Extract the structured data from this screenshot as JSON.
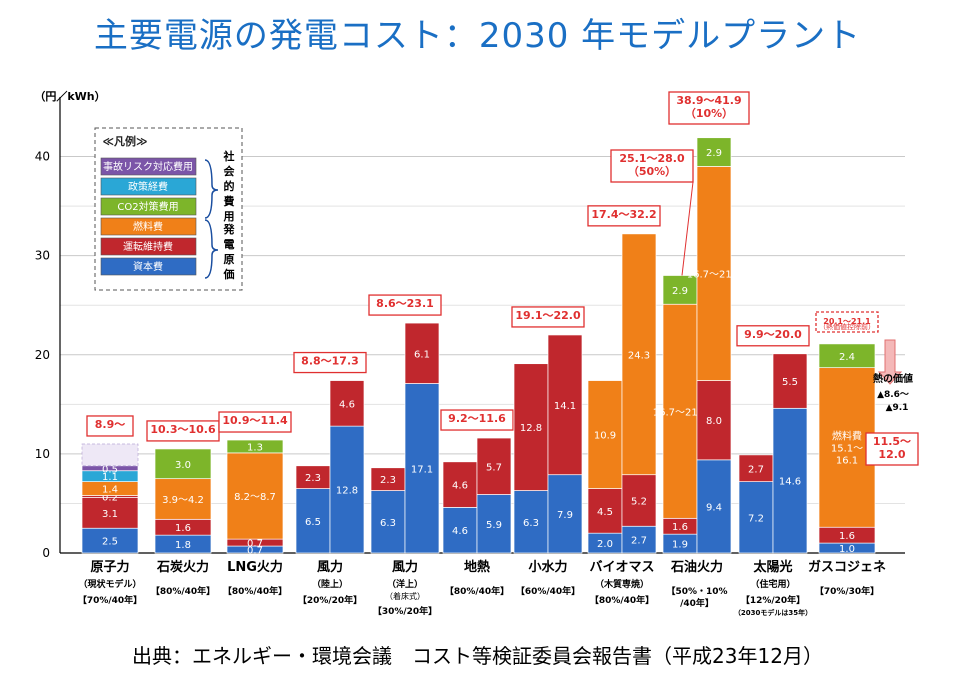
{
  "page": {
    "title": "主要電源の発電コスト：2030 年モデルプラント",
    "source": "出典：エネルギー・環境会議　コスト等検証委員会報告書（平成23年12月）"
  },
  "colors": {
    "capital": "#2f6cc4",
    "om": "#c0272d",
    "fuel": "#f08018",
    "co2": "#7db52a",
    "policy": "#2aa7d6",
    "accident": "#7b55a8",
    "box_border": "#e03030"
  },
  "chart_data": {
    "type": "bar",
    "stacked": true,
    "title": "主要電源の発電コスト：2030 年モデルプラント",
    "ylabel": "（円／kWh）",
    "ylim": [
      0,
      45
    ],
    "yticks": [
      0,
      10,
      20,
      30,
      40
    ],
    "grid": true,
    "legend": {
      "title": "≪凡例≫",
      "placement": "top-left",
      "items": [
        {
          "key": "accident",
          "label": "事故リスク対応費用"
        },
        {
          "key": "policy",
          "label": "政策経費"
        },
        {
          "key": "co2",
          "label": "CO2対策費用"
        },
        {
          "key": "fuel",
          "label": "燃料費"
        },
        {
          "key": "om",
          "label": "運転維持費"
        },
        {
          "key": "capital",
          "label": "資本費"
        }
      ],
      "group_social": "社会的費用",
      "group_gen": "発電原価"
    },
    "categories": [
      {
        "name": "原子力",
        "sub1": "（現状モデル）",
        "sub2": "【70%/40年】",
        "range_label": "8.9～",
        "bars": [
          {
            "segments": [
              {
                "key": "capital",
                "value": 2.5,
                "label": "2.5"
              },
              {
                "key": "om",
                "value": 3.1,
                "label": "3.1"
              },
              {
                "key": "om",
                "value": 0.2,
                "label": "0.2"
              },
              {
                "key": "fuel",
                "value": 1.4,
                "label": "1.4"
              },
              {
                "key": "policy",
                "value": 1.1,
                "label": "1.1"
              },
              {
                "key": "accident",
                "value": 0.5,
                "label": "0.5"
              },
              {
                "key": "accident_open",
                "value": 2.2,
                "label": ""
              }
            ]
          }
        ]
      },
      {
        "name": "石炭火力",
        "sub1": "",
        "sub2": "【80%/40年】",
        "range_label": "10.3～10.6",
        "bars": [
          {
            "segments": [
              {
                "key": "capital",
                "value": 1.8,
                "label": "1.8"
              },
              {
                "key": "om",
                "value": 1.6,
                "label": "1.6"
              },
              {
                "key": "fuel",
                "value": 4.1,
                "label": "3.9～4.2"
              },
              {
                "key": "co2",
                "value": 3.0,
                "label": "3.0"
              }
            ]
          }
        ]
      },
      {
        "name": "LNG火力",
        "sub1": "",
        "sub2": "【80%/40年】",
        "range_label": "10.9～11.4",
        "bars": [
          {
            "segments": [
              {
                "key": "capital",
                "value": 0.7,
                "label": "0.7"
              },
              {
                "key": "om",
                "value": 0.7,
                "label": "0.7"
              },
              {
                "key": "fuel",
                "value": 8.7,
                "label": "8.2～8.7"
              },
              {
                "key": "co2",
                "value": 1.3,
                "label": "1.3"
              }
            ]
          }
        ]
      },
      {
        "name": "風力",
        "sub1": "（陸上）",
        "sub2": "【20%/20年】",
        "range_label": "8.8～17.3",
        "bars": [
          {
            "segments": [
              {
                "key": "capital",
                "value": 6.5,
                "label": "6.5"
              },
              {
                "key": "om",
                "value": 2.3,
                "label": "2.3"
              }
            ]
          },
          {
            "segments": [
              {
                "key": "capital",
                "value": 12.8,
                "label": "12.8"
              },
              {
                "key": "om",
                "value": 4.6,
                "label": "4.6"
              }
            ]
          }
        ]
      },
      {
        "name": "風力",
        "sub1": "（洋上）",
        "sub1b": "（着床式）",
        "sub2": "【30%/20年】",
        "range_label": "8.6～23.1",
        "bars": [
          {
            "segments": [
              {
                "key": "capital",
                "value": 6.3,
                "label": "6.3"
              },
              {
                "key": "om",
                "value": 2.3,
                "label": "2.3"
              }
            ]
          },
          {
            "segments": [
              {
                "key": "capital",
                "value": 17.1,
                "label": "17.1"
              },
              {
                "key": "om",
                "value": 6.1,
                "label": "6.1"
              }
            ]
          }
        ]
      },
      {
        "name": "地熱",
        "sub1": "",
        "sub2": "【80%/40年】",
        "range_label": "9.2～11.6",
        "bars": [
          {
            "segments": [
              {
                "key": "capital",
                "value": 4.6,
                "label": "4.6"
              },
              {
                "key": "om",
                "value": 4.6,
                "label": "4.6"
              }
            ]
          },
          {
            "segments": [
              {
                "key": "capital",
                "value": 5.9,
                "label": "5.9"
              },
              {
                "key": "om",
                "value": 5.7,
                "label": "5.7"
              }
            ]
          }
        ]
      },
      {
        "name": "小水力",
        "sub1": "",
        "sub2": "【60%/40年】",
        "range_label": "19.1～22.0",
        "bars": [
          {
            "segments": [
              {
                "key": "capital",
                "value": 6.3,
                "label": "6.3"
              },
              {
                "key": "om",
                "value": 12.8,
                "label": "12.8"
              }
            ]
          },
          {
            "segments": [
              {
                "key": "capital",
                "value": 7.9,
                "label": "7.9"
              },
              {
                "key": "om",
                "value": 14.1,
                "label": "14.1"
              }
            ]
          }
        ]
      },
      {
        "name": "バイオマス",
        "sub1": "（木質専焼）",
        "sub2": "【80%/40年】",
        "range_label": "17.4～32.2",
        "bars": [
          {
            "segments": [
              {
                "key": "capital",
                "value": 2.0,
                "label": "2.0"
              },
              {
                "key": "om",
                "value": 4.5,
                "label": "4.5"
              },
              {
                "key": "fuel",
                "value": 10.9,
                "label": "10.9"
              }
            ]
          },
          {
            "segments": [
              {
                "key": "capital",
                "value": 2.7,
                "label": "2.7"
              },
              {
                "key": "om",
                "value": 5.2,
                "label": "5.2"
              },
              {
                "key": "fuel",
                "value": 24.3,
                "label": "24.3"
              }
            ]
          }
        ]
      },
      {
        "name": "石油火力",
        "sub1": "",
        "sub2": "【50%・10%",
        "sub2b": "/40年】",
        "range_label": "38.9～41.9",
        "range_label2": "（10%）",
        "range_label_b": "25.1～28.0",
        "range_label_b2": "（50%）",
        "bars": [
          {
            "segments": [
              {
                "key": "capital",
                "value": 1.9,
                "label": "1.9"
              },
              {
                "key": "om",
                "value": 1.6,
                "label": "1.6"
              },
              {
                "key": "fuel",
                "value": 21.6,
                "label": "16.7～21.6"
              },
              {
                "key": "co2",
                "value": 2.9,
                "label": "2.9"
              }
            ]
          },
          {
            "segments": [
              {
                "key": "capital",
                "value": 9.4,
                "label": "9.4"
              },
              {
                "key": "om",
                "value": 8.0,
                "label": "8.0"
              },
              {
                "key": "fuel",
                "value": 21.6,
                "label": "16.7～21.6"
              },
              {
                "key": "co2",
                "value": 2.9,
                "label": "2.9"
              }
            ]
          }
        ]
      },
      {
        "name": "太陽光",
        "sub1": "（住宅用）",
        "sub2": "【12%/20年】",
        "sub2b": "（2030モデルは35年）",
        "range_label": "9.9～20.0",
        "bars": [
          {
            "segments": [
              {
                "key": "capital",
                "value": 7.2,
                "label": "7.2"
              },
              {
                "key": "om",
                "value": 2.7,
                "label": "2.7"
              }
            ]
          },
          {
            "segments": [
              {
                "key": "capital",
                "value": 14.6,
                "label": "14.6"
              },
              {
                "key": "om",
                "value": 5.5,
                "label": "5.5"
              }
            ]
          }
        ]
      },
      {
        "name": "ガスコジェネ",
        "sub1": "",
        "sub2": "【70%/30年】",
        "range_label": "20.1～21.1",
        "range_label2": "（熱価値控除前）",
        "heat_label1": "熱の価値",
        "heat_label2": "▲8.6～",
        "heat_label3": "▲9.1",
        "net_label1": "11.5～",
        "net_label2": "12.0",
        "bars": [
          {
            "segments": [
              {
                "key": "capital",
                "value": 1.0,
                "label": "1.0"
              },
              {
                "key": "om",
                "value": 1.6,
                "label": "1.6"
              },
              {
                "key": "fuel",
                "value": 16.1,
                "label": "燃料費\n15.1～\n16.1"
              },
              {
                "key": "co2",
                "value": 2.4,
                "label": "2.4"
              }
            ]
          }
        ]
      }
    ]
  }
}
